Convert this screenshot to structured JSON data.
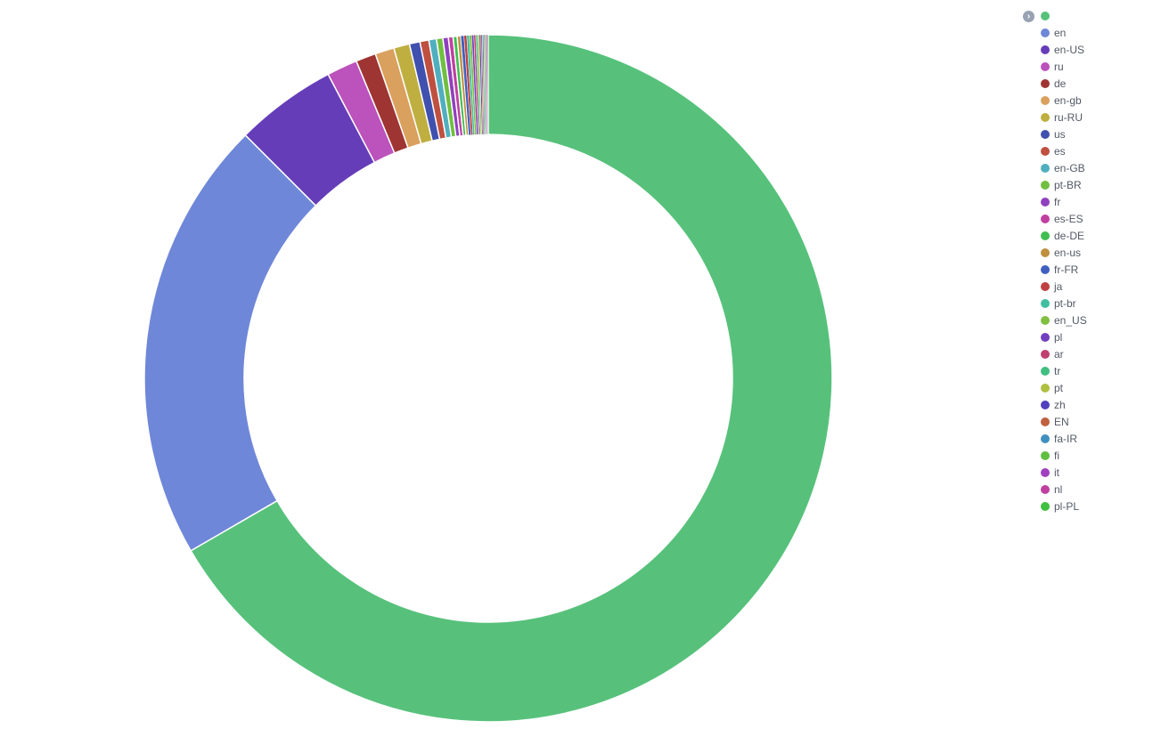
{
  "legend": {
    "toggle_icon": "chevron-right-icon",
    "toggle_glyph": "›"
  },
  "chart_data": {
    "type": "pie",
    "donut": true,
    "legend_position": "right",
    "labels": [
      "",
      "en",
      "en-US",
      "ru",
      "de",
      "en-gb",
      "ru-RU",
      "us",
      "es",
      "en-GB",
      "pt-BR",
      "fr",
      "es-ES",
      "de-DE",
      "en-us",
      "fr-FR",
      "ja",
      "pt-br",
      "en_US",
      "pl",
      "ar",
      "tr",
      "pt",
      "zh",
      "EN",
      "fa-IR",
      "fi",
      "it",
      "nl",
      "pl-PL"
    ],
    "values": [
      67.0,
      21.0,
      4.8,
      1.45,
      0.95,
      0.9,
      0.75,
      0.5,
      0.42,
      0.36,
      0.3,
      0.26,
      0.22,
      0.19,
      0.17,
      0.15,
      0.13,
      0.12,
      0.11,
      0.1,
      0.09,
      0.085,
      0.08,
      0.075,
      0.07,
      0.065,
      0.06,
      0.055,
      0.05,
      0.045
    ],
    "colors": [
      "#57c17b",
      "#6f87d8",
      "#663db8",
      "#bc52bc",
      "#9e3533",
      "#daa05d",
      "#bfaf40",
      "#4050af",
      "#bf5040",
      "#50afbf",
      "#70bf40",
      "#8f40bf",
      "#bf40a0",
      "#40bf50",
      "#bf9040",
      "#4060bf",
      "#bf4040",
      "#40bfa0",
      "#80bf40",
      "#7040bf",
      "#bf4070",
      "#40bf80",
      "#b0bf40",
      "#5040bf",
      "#bf6040",
      "#4090bf",
      "#60bf40",
      "#a040bf",
      "#bf40a0",
      "#40bf40"
    ]
  }
}
